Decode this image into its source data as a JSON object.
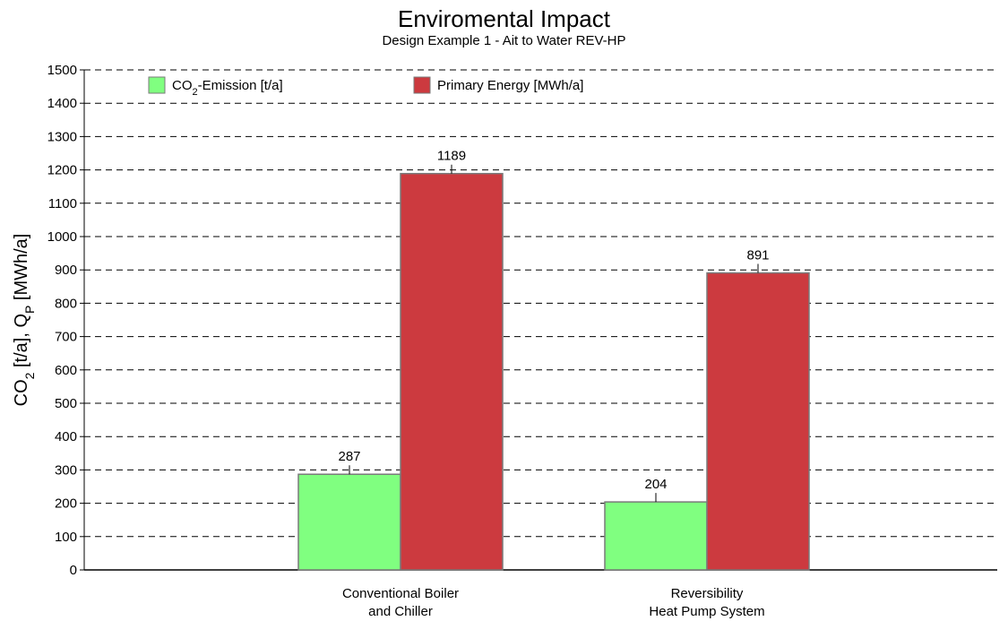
{
  "chart_data": {
    "type": "bar",
    "title": "Enviromental Impact",
    "subtitle": "Design Example 1 - Ait to Water REV-HP",
    "ylabel": "CO2 [t/a],   QP [MWh/a]",
    "xlabel": "",
    "ylim": [
      0,
      1500
    ],
    "yticks": [
      0,
      100,
      200,
      300,
      400,
      500,
      600,
      700,
      800,
      900,
      1000,
      1100,
      1200,
      1300,
      1400,
      1500
    ],
    "grid": "horizontal-dashed",
    "legend_position": "top",
    "categories": [
      [
        "Conventional Boiler",
        "and Chiller"
      ],
      [
        "Reversibility",
        "Heat Pump System"
      ]
    ],
    "series": [
      {
        "name": "CO2-Emission [t/a]",
        "values": [
          287,
          204
        ],
        "color": "#80ff80"
      },
      {
        "name": "Primary Energy [MWh/a]",
        "values": [
          1189,
          891
        ],
        "color": "#cc3a3f"
      }
    ]
  }
}
